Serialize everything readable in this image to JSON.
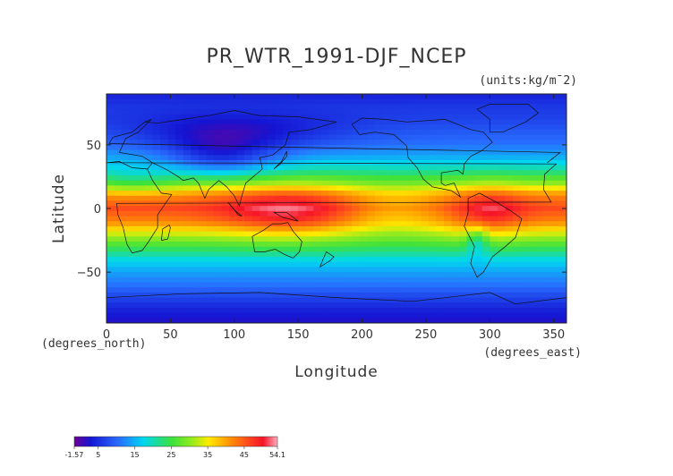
{
  "chart_data": {
    "type": "heatmap",
    "title": "PR_WTR_1991-DJF_NCEP",
    "units_label": "(units:kg/m¯2)",
    "xlabel": "Longitude",
    "ylabel": "Latitude",
    "x_unit_label": "(degrees_east)",
    "y_unit_label": "(degrees_north)",
    "xlim": [
      0,
      360
    ],
    "ylim": [
      -90,
      90
    ],
    "x_ticks": [
      0,
      50,
      100,
      150,
      200,
      250,
      300,
      350
    ],
    "y_ticks": [
      50,
      0,
      -50
    ],
    "x_tick_labels": [
      "0",
      "50",
      "100",
      "150",
      "200",
      "250",
      "300",
      "350"
    ],
    "y_tick_labels": [
      "50",
      "0",
      "−50"
    ],
    "colorbar": {
      "min": -1.57,
      "max": 54.1,
      "labels": [
        "-1.57",
        "5",
        "15",
        "25",
        "35",
        "45",
        "54.1"
      ],
      "label_values": [
        -1.57,
        5,
        15,
        25,
        35,
        45,
        54.1
      ]
    },
    "latitude_profile": {
      "lat": [
        90,
        80,
        70,
        60,
        50,
        40,
        30,
        20,
        10,
        0,
        -10,
        -20,
        -30,
        -40,
        -50,
        -60,
        -70,
        -80,
        -90
      ],
      "value": [
        4,
        6,
        7,
        9,
        11,
        15,
        21,
        30,
        42,
        46,
        42,
        33,
        25,
        18,
        14,
        11,
        7,
        4,
        2
      ]
    },
    "notes": [
      "Continental outlines overlaid on field"
    ]
  }
}
